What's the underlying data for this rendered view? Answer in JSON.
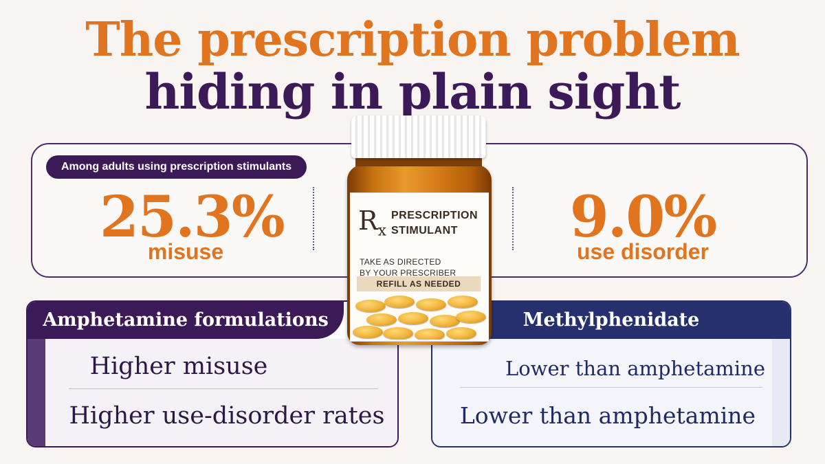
{
  "title": {
    "line1": "The prescription problem",
    "line2": "hiding in plain sight"
  },
  "stats": {
    "population_label": "Among adults using prescription stimulants",
    "misuse_value": "25.3%",
    "misuse_label": "misuse",
    "disorder_value": "9.0%",
    "disorder_label": "use disorder"
  },
  "bottle_label": {
    "rx": "R",
    "rx_sub": "x",
    "title_line1": "PRESCRIPTION",
    "title_line2": "STIMULANT",
    "directions_line1": "TAKE AS DIRECTED",
    "directions_line2": "BY YOUR PRESCRIBER",
    "refill": "REFILL AS NEEDED"
  },
  "amphetamine": {
    "heading": "Amphetamine formulations",
    "row1": "Higher misuse",
    "row2": "Higher use-disorder rates"
  },
  "methylphenidate": {
    "heading": "Methylphenidate",
    "row1": "Lower than amphetamine",
    "row2": "Lower than amphetamine"
  },
  "colors": {
    "orange": "#e0741f",
    "purple": "#3b1a57",
    "navy": "#26306f",
    "amber": "#d8801a"
  },
  "icons": [
    "prescription-bottle-icon"
  ]
}
